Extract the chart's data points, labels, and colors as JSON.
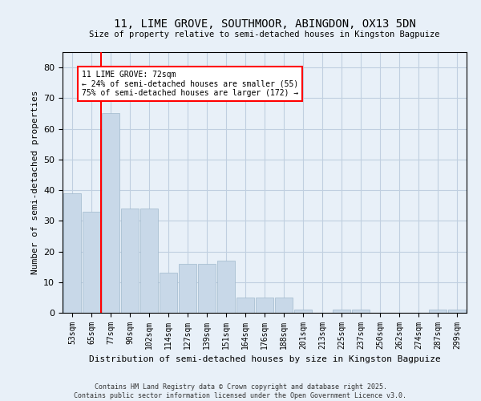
{
  "title": "11, LIME GROVE, SOUTHMOOR, ABINGDON, OX13 5DN",
  "subtitle": "Size of property relative to semi-detached houses in Kingston Bagpuize",
  "xlabel": "Distribution of semi-detached houses by size in Kingston Bagpuize",
  "ylabel": "Number of semi-detached properties",
  "categories": [
    "53sqm",
    "65sqm",
    "77sqm",
    "90sqm",
    "102sqm",
    "114sqm",
    "127sqm",
    "139sqm",
    "151sqm",
    "164sqm",
    "176sqm",
    "188sqm",
    "201sqm",
    "213sqm",
    "225sqm",
    "237sqm",
    "250sqm",
    "262sqm",
    "274sqm",
    "287sqm",
    "299sqm"
  ],
  "values": [
    39,
    33,
    65,
    34,
    34,
    13,
    16,
    16,
    17,
    5,
    5,
    5,
    1,
    0,
    1,
    1,
    0,
    0,
    0,
    1,
    1
  ],
  "bar_color": "#c8d8e8",
  "bar_edge_color": "#a0b8cc",
  "grid_color": "#c0cfe0",
  "background_color": "#e8f0f8",
  "vline_x_idx": 2,
  "vline_color": "red",
  "annotation_title": "11 LIME GROVE: 72sqm",
  "annotation_line1": "← 24% of semi-detached houses are smaller (55)",
  "annotation_line2": "75% of semi-detached houses are larger (172) →",
  "annotation_box_color": "white",
  "annotation_box_edge": "red",
  "ylim": [
    0,
    85
  ],
  "yticks": [
    0,
    10,
    20,
    30,
    40,
    50,
    60,
    70,
    80
  ],
  "footer_line1": "Contains HM Land Registry data © Crown copyright and database right 2025.",
  "footer_line2": "Contains public sector information licensed under the Open Government Licence v3.0."
}
